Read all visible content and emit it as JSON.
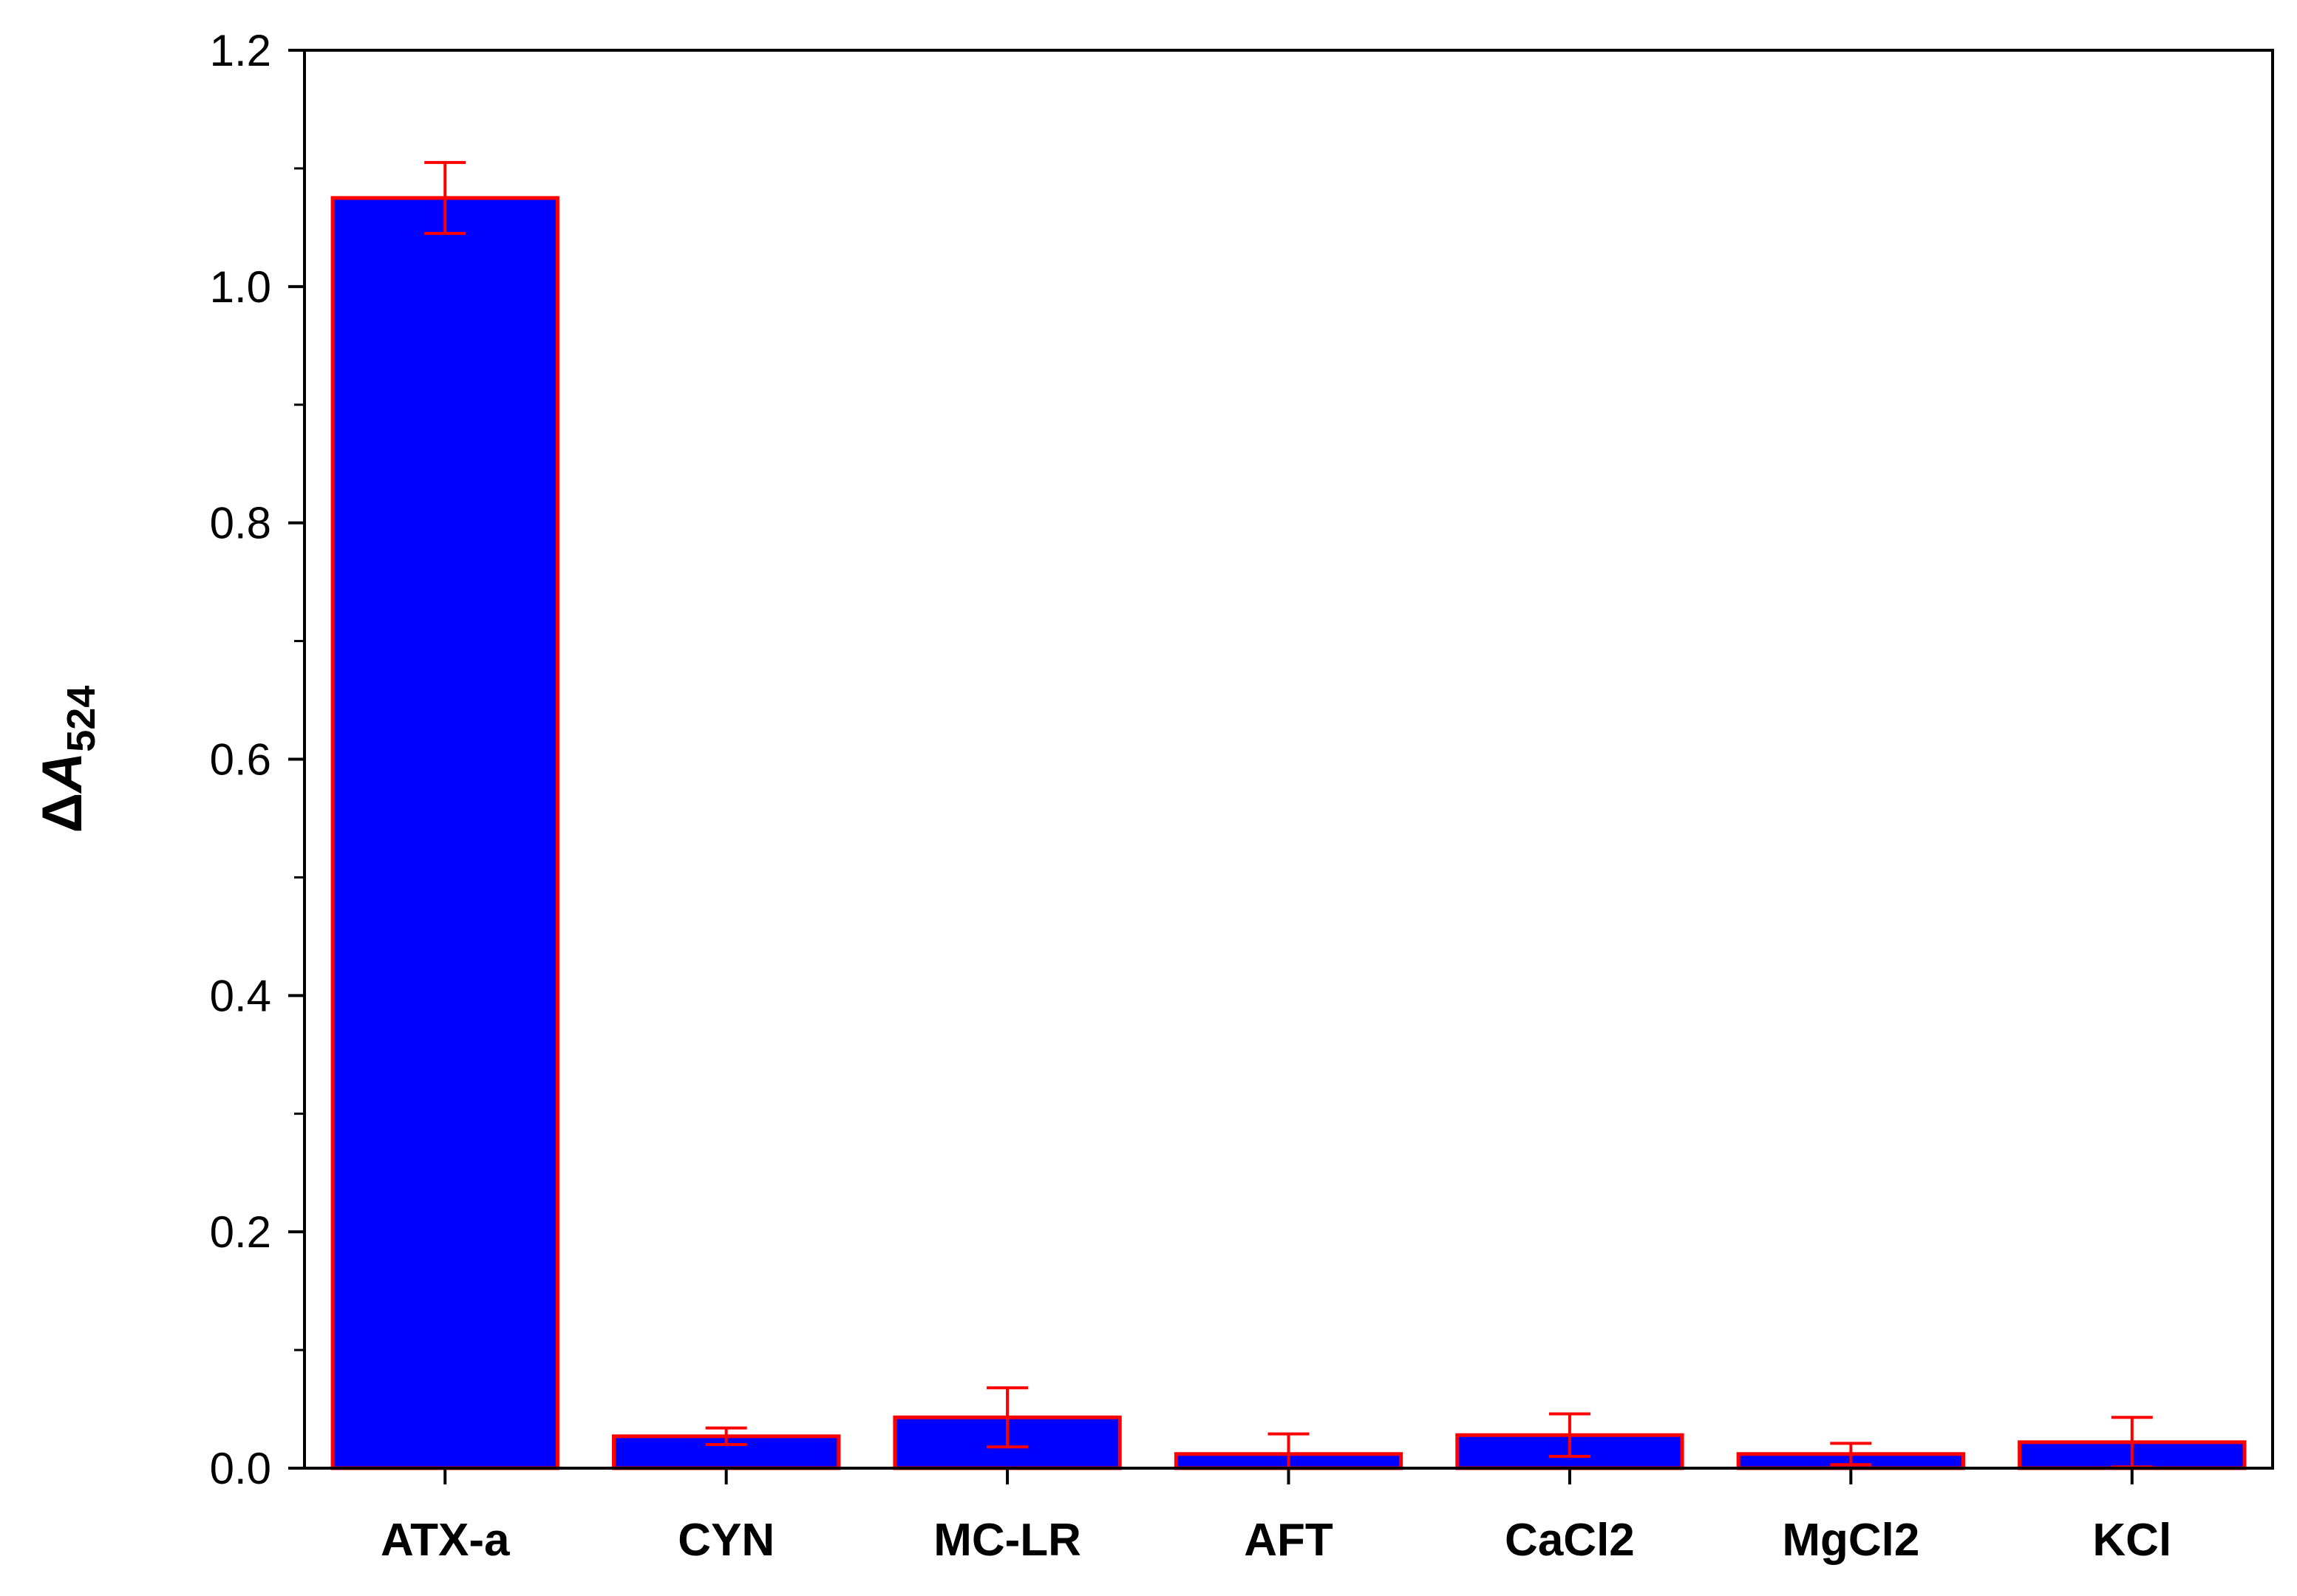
{
  "chart_data": {
    "type": "bar",
    "title": "",
    "xlabel": "",
    "ylabel": "ΔA524",
    "ylabel_parts": {
      "delta": "Δ",
      "main": "A",
      "subscript": "524"
    },
    "categories": [
      "ATX-a",
      "CYN",
      "MC-LR",
      "AFT",
      "CaCl2",
      "MgCl2",
      "KCl"
    ],
    "series": [
      {
        "values": [
          1.075,
          0.027,
          0.043,
          0.012,
          0.028,
          0.012,
          0.022
        ],
        "errors": [
          0.03,
          0.007,
          0.025,
          0.017,
          0.018,
          0.009,
          0.021
        ]
      }
    ],
    "ylim": [
      0,
      1.2
    ],
    "yticks": [
      0.0,
      0.2,
      0.4,
      0.6,
      0.8,
      1.0,
      1.2
    ],
    "ytick_labels": [
      "0.0",
      "0.2",
      "0.4",
      "0.6",
      "0.8",
      "1.0",
      "1.2"
    ],
    "minor_ticks_y": true,
    "grid": false,
    "legend": "none",
    "colors": {
      "bar_fill": "#0000FF",
      "bar_edge": "#FF0000",
      "error_bar": "#FF0000",
      "axis": "#000000"
    }
  }
}
